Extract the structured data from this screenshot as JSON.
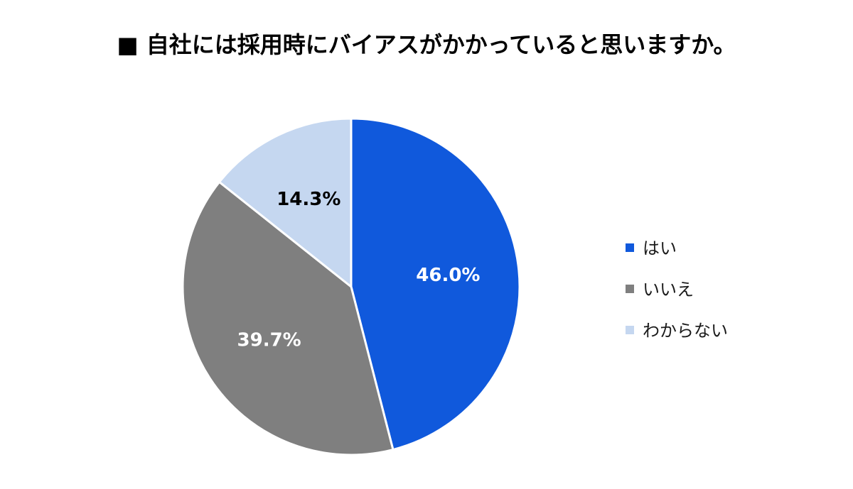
{
  "chart_data": {
    "type": "pie",
    "title": "■ 自社には採用時にバイアスがかかっていると思いますか。",
    "categories": [
      "はい",
      "いいえ",
      "わからない"
    ],
    "values": [
      46.0,
      39.7,
      14.3
    ],
    "value_labels": [
      "46.0%",
      "39.7%",
      "14.3%"
    ],
    "colors": [
      "#1059DC",
      "#7F7F7F",
      "#C5D7F0"
    ],
    "label_colors": [
      "#ffffff",
      "#ffffff",
      "#000000"
    ],
    "legend_position": "right",
    "start_angle": "12 o'clock",
    "direction": "clockwise"
  }
}
